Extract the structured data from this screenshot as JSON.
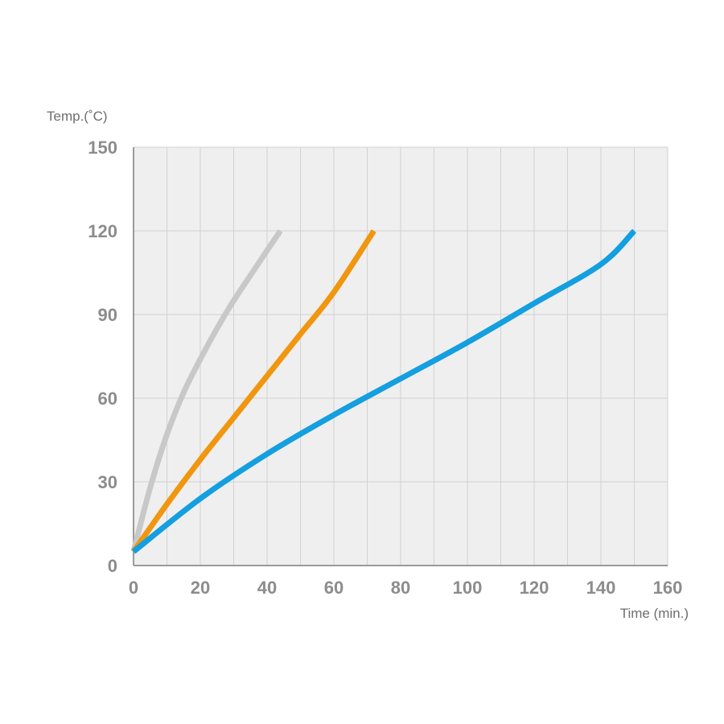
{
  "chart_data": {
    "type": "line",
    "xlabel": "Time (min.)",
    "ylabel": "Temp.(˚C)",
    "xlim": [
      0,
      160
    ],
    "ylim": [
      0,
      150
    ],
    "x_ticks": [
      "0",
      "20",
      "40",
      "60",
      "80",
      "100",
      "120",
      "140",
      "160"
    ],
    "y_ticks": [
      "0",
      "30",
      "60",
      "90",
      "120",
      "150"
    ],
    "grid": true,
    "series": [
      {
        "color": "#c8c8c8",
        "x": [
          0,
          5,
          10,
          15,
          20,
          25,
          30,
          35,
          40,
          44
        ],
        "y": [
          5,
          28,
          47,
          62,
          74,
          85,
          95,
          104,
          113,
          120
        ]
      },
      {
        "color": "#f0960f",
        "x": [
          0,
          10,
          20,
          30,
          40,
          50,
          60,
          72
        ],
        "y": [
          5,
          22,
          38,
          53,
          68,
          83,
          98,
          120
        ]
      },
      {
        "color": "#139fe0",
        "x": [
          0,
          20,
          40,
          60,
          80,
          100,
          120,
          140,
          150
        ],
        "y": [
          5,
          24,
          40,
          54,
          67,
          80,
          94,
          108,
          120
        ]
      }
    ]
  }
}
